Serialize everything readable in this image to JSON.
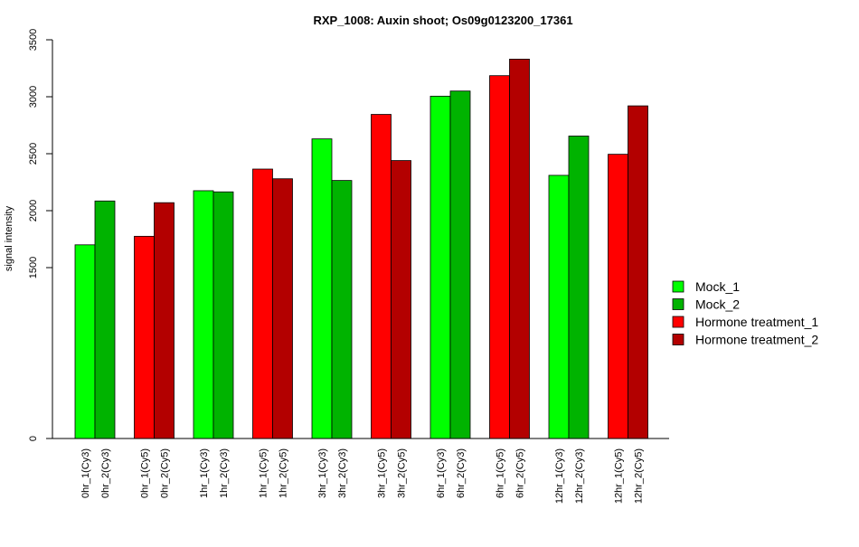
{
  "chart_data": {
    "type": "bar",
    "title": "RXP_1008: Auxin shoot; Os09g0123200_17361",
    "xlabel": "",
    "ylabel": "signal intensity",
    "ylim": [
      0,
      3500
    ],
    "y_ticks": [
      0,
      1500,
      2000,
      2500,
      3000,
      3500
    ],
    "y_tick_labels": [
      "0",
      "1500",
      "2000",
      "2500",
      "3000",
      "3500"
    ],
    "grid": false,
    "legend_position": "right",
    "legend": [
      {
        "label": "Mock_1",
        "color": "#00ff00"
      },
      {
        "label": "Mock_2",
        "color": "#00b300"
      },
      {
        "label": "Hormone treatment_1",
        "color": "#ff0000"
      },
      {
        "label": "Hormone treatment_2",
        "color": "#b30000"
      }
    ],
    "groups": [
      {
        "bars": [
          {
            "label": "0hr_1(Cy3)",
            "value": 1700,
            "color": "#00ff00"
          },
          {
            "label": "0hr_2(Cy3)",
            "value": 2085,
            "color": "#00b300"
          }
        ]
      },
      {
        "bars": [
          {
            "label": "0hr_1(Cy5)",
            "value": 1775,
            "color": "#ff0000"
          },
          {
            "label": "0hr_2(Cy5)",
            "value": 2070,
            "color": "#b30000"
          }
        ]
      },
      {
        "bars": [
          {
            "label": "1hr_1(Cy3)",
            "value": 2175,
            "color": "#00ff00"
          },
          {
            "label": "1hr_2(Cy3)",
            "value": 2165,
            "color": "#00b300"
          }
        ]
      },
      {
        "bars": [
          {
            "label": "1hr_1(Cy5)",
            "value": 2365,
            "color": "#ff0000"
          },
          {
            "label": "1hr_2(Cy5)",
            "value": 2280,
            "color": "#b30000"
          }
        ]
      },
      {
        "bars": [
          {
            "label": "3hr_1(Cy3)",
            "value": 2630,
            "color": "#00ff00"
          },
          {
            "label": "3hr_2(Cy3)",
            "value": 2265,
            "color": "#00b300"
          }
        ]
      },
      {
        "bars": [
          {
            "label": "3hr_1(Cy5)",
            "value": 2845,
            "color": "#ff0000"
          },
          {
            "label": "3hr_2(Cy5)",
            "value": 2440,
            "color": "#b30000"
          }
        ]
      },
      {
        "bars": [
          {
            "label": "6hr_1(Cy3)",
            "value": 3005,
            "color": "#00ff00"
          },
          {
            "label": "6hr_2(Cy3)",
            "value": 3050,
            "color": "#00b300"
          }
        ]
      },
      {
        "bars": [
          {
            "label": "6hr_1(Cy5)",
            "value": 3185,
            "color": "#ff0000"
          },
          {
            "label": "6hr_2(Cy5)",
            "value": 3330,
            "color": "#b30000"
          }
        ]
      },
      {
        "bars": [
          {
            "label": "12hr_1(Cy3)",
            "value": 2310,
            "color": "#00ff00"
          },
          {
            "label": "12hr_2(Cy3)",
            "value": 2655,
            "color": "#00b300"
          }
        ]
      },
      {
        "bars": [
          {
            "label": "12hr_1(Cy5)",
            "value": 2495,
            "color": "#ff0000"
          },
          {
            "label": "12hr_2(Cy5)",
            "value": 2920,
            "color": "#b30000"
          }
        ]
      }
    ]
  }
}
